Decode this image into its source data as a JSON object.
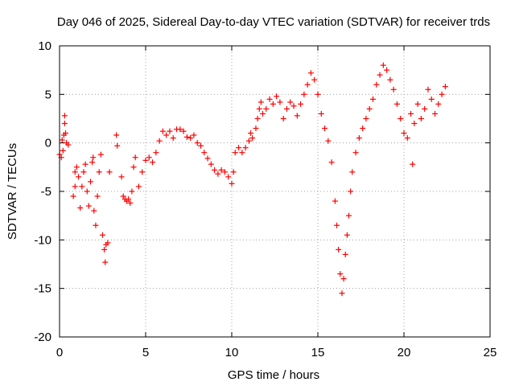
{
  "chart_data": {
    "type": "scatter",
    "title": "Day 046 of 2025, Sidereal Day-to-day VTEC variation (SDTVAR) for receiver trds",
    "xlabel": "GPS time / hours",
    "ylabel": "SDTVAR / TECUs",
    "xlim": [
      0,
      25
    ],
    "ylim": [
      -20,
      10
    ],
    "xticks": [
      0,
      5,
      10,
      15,
      20,
      25
    ],
    "yticks": [
      -20,
      -15,
      -10,
      -5,
      0,
      5,
      10
    ],
    "xtick_labels": [
      "0",
      "5",
      "10",
      "15",
      "20",
      "25"
    ],
    "ytick_labels": [
      "-20",
      "-15",
      "-10",
      "-5",
      "0",
      "5",
      "10"
    ],
    "grid": true,
    "marker": "+",
    "color": "#ff0000",
    "series": [
      {
        "name": "trds",
        "points": [
          [
            0.0,
            -1.2
          ],
          [
            0.1,
            -1.5
          ],
          [
            0.15,
            0.3
          ],
          [
            0.2,
            -0.8
          ],
          [
            0.25,
            0.8
          ],
          [
            0.3,
            2.8
          ],
          [
            0.3,
            2.0
          ],
          [
            0.35,
            1.0
          ],
          [
            0.4,
            0.0
          ],
          [
            0.5,
            -0.2
          ],
          [
            0.8,
            -5.5
          ],
          [
            0.9,
            -4.5
          ],
          [
            0.9,
            -3.0
          ],
          [
            1.0,
            -2.5
          ],
          [
            1.1,
            -3.5
          ],
          [
            1.2,
            -6.7
          ],
          [
            1.3,
            -4.5
          ],
          [
            1.4,
            -3.0
          ],
          [
            1.5,
            -2.2
          ],
          [
            1.6,
            -5.0
          ],
          [
            1.7,
            -6.5
          ],
          [
            1.8,
            -4.0
          ],
          [
            1.9,
            -2.0
          ],
          [
            1.95,
            -1.5
          ],
          [
            2.0,
            -7.0
          ],
          [
            2.1,
            -8.5
          ],
          [
            2.2,
            -5.5
          ],
          [
            2.3,
            -3.0
          ],
          [
            2.4,
            -1.2
          ],
          [
            2.5,
            -9.5
          ],
          [
            2.6,
            -11.0
          ],
          [
            2.65,
            -12.3
          ],
          [
            2.7,
            -10.5
          ],
          [
            2.8,
            -10.3
          ],
          [
            2.9,
            -3.0
          ],
          [
            3.3,
            0.8
          ],
          [
            3.35,
            -0.3
          ],
          [
            3.6,
            -3.5
          ],
          [
            3.7,
            -5.5
          ],
          [
            3.8,
            -5.8
          ],
          [
            3.9,
            -6.0
          ],
          [
            4.0,
            -5.8
          ],
          [
            4.1,
            -6.2
          ],
          [
            4.2,
            -5.0
          ],
          [
            4.3,
            -2.5
          ],
          [
            4.4,
            -1.5
          ],
          [
            4.6,
            -4.5
          ],
          [
            4.8,
            -3.0
          ],
          [
            5.0,
            -1.8
          ],
          [
            5.2,
            -1.5
          ],
          [
            5.4,
            -2.0
          ],
          [
            5.6,
            -1.0
          ],
          [
            5.8,
            0.2
          ],
          [
            6.0,
            1.2
          ],
          [
            6.2,
            0.8
          ],
          [
            6.4,
            1.2
          ],
          [
            6.6,
            0.5
          ],
          [
            6.8,
            1.4
          ],
          [
            7.0,
            1.4
          ],
          [
            7.2,
            1.2
          ],
          [
            7.4,
            0.6
          ],
          [
            7.6,
            0.5
          ],
          [
            7.8,
            0.8
          ],
          [
            8.0,
            0.0
          ],
          [
            8.2,
            -0.3
          ],
          [
            8.4,
            -1.0
          ],
          [
            8.6,
            -1.6
          ],
          [
            8.8,
            -2.2
          ],
          [
            9.0,
            -2.8
          ],
          [
            9.2,
            -3.2
          ],
          [
            9.4,
            -2.8
          ],
          [
            9.6,
            -3.0
          ],
          [
            9.8,
            -3.5
          ],
          [
            10.0,
            -4.2
          ],
          [
            10.1,
            -3.0
          ],
          [
            10.2,
            -1.0
          ],
          [
            10.4,
            -0.5
          ],
          [
            10.6,
            -1.0
          ],
          [
            10.8,
            -0.5
          ],
          [
            11.0,
            0.2
          ],
          [
            11.1,
            1.0
          ],
          [
            11.2,
            0.5
          ],
          [
            11.4,
            1.5
          ],
          [
            11.5,
            2.5
          ],
          [
            11.6,
            3.5
          ],
          [
            11.7,
            4.2
          ],
          [
            11.8,
            3.0
          ],
          [
            12.0,
            3.5
          ],
          [
            12.2,
            4.5
          ],
          [
            12.4,
            4.0
          ],
          [
            12.6,
            4.8
          ],
          [
            12.8,
            4.2
          ],
          [
            13.0,
            2.5
          ],
          [
            13.2,
            3.5
          ],
          [
            13.4,
            4.2
          ],
          [
            13.6,
            3.8
          ],
          [
            13.8,
            2.8
          ],
          [
            14.0,
            4.0
          ],
          [
            14.2,
            5.0
          ],
          [
            14.4,
            6.0
          ],
          [
            14.6,
            7.2
          ],
          [
            14.8,
            6.5
          ],
          [
            15.0,
            5.0
          ],
          [
            15.2,
            3.0
          ],
          [
            15.4,
            1.5
          ],
          [
            15.6,
            0.2
          ],
          [
            15.8,
            -2.0
          ],
          [
            16.0,
            -6.0
          ],
          [
            16.1,
            -8.5
          ],
          [
            16.2,
            -11.0
          ],
          [
            16.3,
            -13.5
          ],
          [
            16.4,
            -15.5
          ],
          [
            16.5,
            -14.0
          ],
          [
            16.6,
            -11.5
          ],
          [
            16.7,
            -9.5
          ],
          [
            16.8,
            -7.5
          ],
          [
            16.9,
            -5.0
          ],
          [
            17.0,
            -3.0
          ],
          [
            17.2,
            -1.0
          ],
          [
            17.4,
            0.5
          ],
          [
            17.6,
            1.5
          ],
          [
            17.8,
            2.5
          ],
          [
            18.0,
            3.5
          ],
          [
            18.2,
            4.5
          ],
          [
            18.4,
            6.0
          ],
          [
            18.6,
            7.0
          ],
          [
            18.8,
            8.0
          ],
          [
            19.0,
            7.5
          ],
          [
            19.2,
            6.5
          ],
          [
            19.4,
            5.5
          ],
          [
            19.6,
            4.0
          ],
          [
            19.8,
            2.5
          ],
          [
            20.0,
            1.0
          ],
          [
            20.2,
            0.5
          ],
          [
            20.4,
            3.0
          ],
          [
            20.5,
            -2.2
          ],
          [
            20.6,
            2.0
          ],
          [
            20.8,
            4.0
          ],
          [
            21.0,
            2.5
          ],
          [
            21.2,
            3.5
          ],
          [
            21.4,
            5.5
          ],
          [
            21.6,
            4.5
          ],
          [
            21.8,
            3.0
          ],
          [
            22.0,
            4.0
          ],
          [
            22.2,
            5.0
          ],
          [
            22.4,
            5.8
          ]
        ]
      }
    ]
  }
}
